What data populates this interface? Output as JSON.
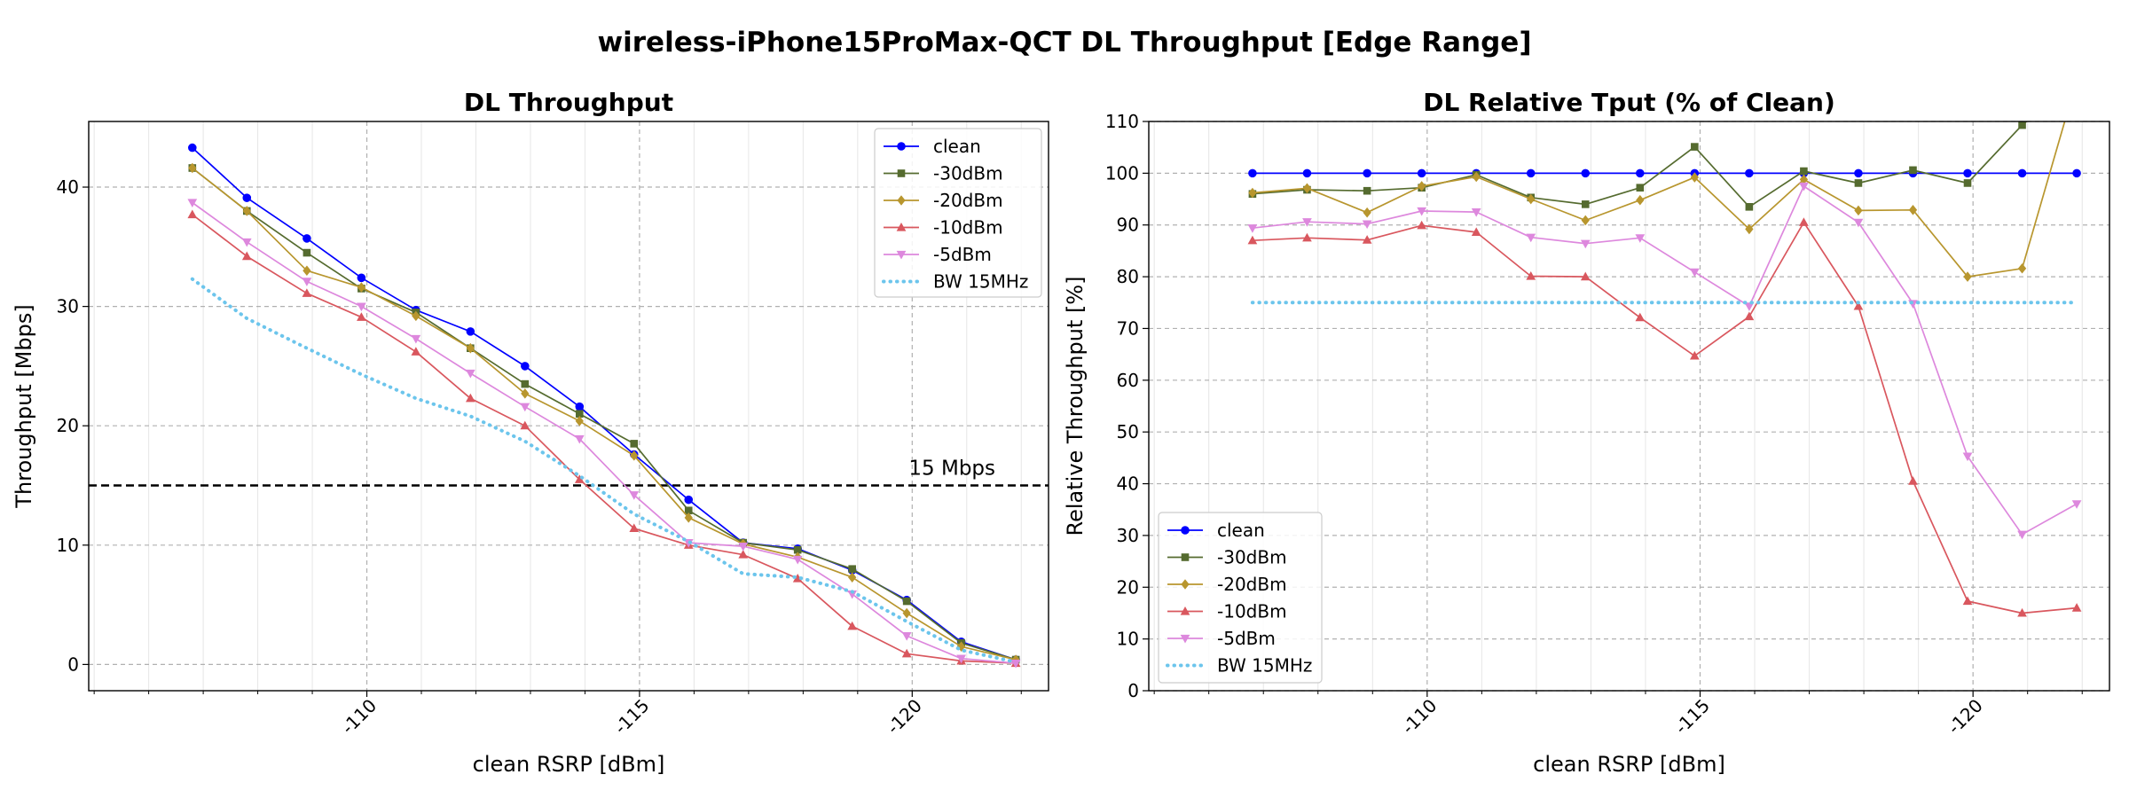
{
  "figure": {
    "suptitle": "wireless-iPhone15ProMax-QCT DL Throughput [Edge Range]"
  },
  "chart_data": [
    {
      "type": "line",
      "title": "DL Throughput",
      "xlabel": "clean RSRP [dBm]",
      "ylabel": "Throughput [Mbps]",
      "x_inverted": true,
      "xlim": [
        -104.9,
        -122.5
      ],
      "ylim": [
        -2.2,
        45.5
      ],
      "x_ticks": [
        -110,
        -115,
        -120
      ],
      "x_tick_labels": [
        "-110",
        "-115",
        "-120"
      ],
      "y_ticks": [
        0,
        10,
        20,
        30,
        40
      ],
      "y_tick_labels": [
        "0",
        "10",
        "20",
        "30",
        "40"
      ],
      "grid": true,
      "legend_position": "top-right",
      "reference_line": {
        "y": 15,
        "label": "15 Mbps",
        "style": "dashed",
        "color": "#000000"
      },
      "x": [
        -106.8,
        -107.8,
        -108.9,
        -109.9,
        -110.9,
        -111.9,
        -112.9,
        -113.9,
        -114.9,
        -115.9,
        -116.9,
        -117.9,
        -118.9,
        -119.9,
        -120.9,
        -121.9
      ],
      "series": [
        {
          "name": "clean",
          "color": "#0000ff",
          "marker": "circle",
          "style": "solid",
          "values": [
            43.3,
            39.1,
            35.7,
            32.4,
            29.7,
            27.9,
            25.0,
            21.6,
            17.6,
            13.8,
            10.2,
            9.7,
            7.9,
            5.4,
            1.9,
            0.4
          ]
        },
        {
          "name": "-30dBm",
          "color": "#556b2f",
          "marker": "square",
          "style": "solid",
          "values": [
            41.6,
            38.0,
            34.5,
            31.5,
            29.5,
            26.5,
            23.5,
            21.0,
            18.5,
            12.9,
            10.2,
            9.6,
            8.0,
            5.3,
            1.8,
            0.4
          ]
        },
        {
          "name": "-20dBm",
          "color": "#b8962e",
          "marker": "diamond",
          "style": "solid",
          "values": [
            41.6,
            38.0,
            33.0,
            31.6,
            29.2,
            26.5,
            22.7,
            20.4,
            17.5,
            12.3,
            10.1,
            9.0,
            7.3,
            4.3,
            1.5,
            0.4
          ]
        },
        {
          "name": "-10dBm",
          "color": "#d9575e",
          "marker": "triangle-up",
          "style": "solid",
          "values": [
            37.7,
            34.2,
            31.1,
            29.1,
            26.2,
            22.3,
            20.0,
            15.5,
            11.4,
            10.0,
            9.2,
            7.2,
            3.2,
            0.9,
            0.3,
            0.1
          ]
        },
        {
          "name": "-5dBm",
          "color": "#dd88dd",
          "marker": "triangle-down",
          "style": "solid",
          "values": [
            38.7,
            35.4,
            32.1,
            30.0,
            27.3,
            24.4,
            21.6,
            18.9,
            14.2,
            10.2,
            9.9,
            8.8,
            5.9,
            2.4,
            0.5,
            0.1
          ]
        },
        {
          "name": "BW 15MHz",
          "color": "#6cc5ec",
          "marker": "none",
          "style": "dotted",
          "values": [
            32.3,
            29.0,
            26.5,
            24.3,
            22.3,
            20.8,
            18.7,
            15.8,
            12.6,
            10.3,
            7.6,
            7.3,
            6.1,
            3.6,
            1.2,
            0.2
          ]
        }
      ]
    },
    {
      "type": "line",
      "title": "DL Relative Tput (% of Clean)",
      "xlabel": "clean RSRP [dBm]",
      "ylabel": "Relative Throughput [%]",
      "x_inverted": true,
      "xlim": [
        -104.9,
        -122.5
      ],
      "ylim": [
        0,
        110
      ],
      "x_ticks": [
        -110,
        -115,
        -120
      ],
      "x_tick_labels": [
        "-110",
        "-115",
        "-120"
      ],
      "y_ticks": [
        0,
        10,
        20,
        30,
        40,
        50,
        60,
        70,
        80,
        90,
        100,
        110
      ],
      "y_tick_labels": [
        "0",
        "10",
        "20",
        "30",
        "40",
        "50",
        "60",
        "70",
        "80",
        "90",
        "100",
        "110"
      ],
      "grid": true,
      "legend_position": "lower-left",
      "x": [
        -106.8,
        -107.8,
        -108.9,
        -109.9,
        -110.9,
        -111.9,
        -112.9,
        -113.9,
        -114.9,
        -115.9,
        -116.9,
        -117.9,
        -118.9,
        -119.9,
        -120.9,
        -121.9
      ],
      "series": [
        {
          "name": "clean",
          "color": "#0000ff",
          "marker": "circle",
          "style": "solid",
          "values": [
            100,
            100,
            100,
            100,
            100,
            100,
            100,
            100,
            100,
            100,
            100,
            100,
            100,
            100,
            100,
            100
          ]
        },
        {
          "name": "-30dBm",
          "color": "#556b2f",
          "marker": "square",
          "style": "solid",
          "values": [
            96,
            96.8,
            96.6,
            97.2,
            99.7,
            95.3,
            94,
            97.2,
            105.1,
            93.5,
            100.4,
            98.1,
            100.6,
            98.1,
            109.3,
            118
          ]
        },
        {
          "name": "-20dBm",
          "color": "#b8962e",
          "marker": "diamond",
          "style": "solid",
          "values": [
            96.2,
            97.1,
            92.4,
            97.5,
            99.3,
            95,
            90.9,
            94.8,
            99.2,
            89.2,
            98.8,
            92.8,
            92.9,
            80,
            81.6,
            118
          ]
        },
        {
          "name": "-10dBm",
          "color": "#d9575e",
          "marker": "triangle-up",
          "style": "solid",
          "values": [
            87,
            87.5,
            87.1,
            89.9,
            88.6,
            80.1,
            80,
            72.1,
            64.7,
            72.3,
            90.5,
            74.3,
            40.5,
            17.3,
            15,
            16
          ]
        },
        {
          "name": "-5dBm",
          "color": "#dd88dd",
          "marker": "triangle-down",
          "style": "solid",
          "values": [
            89.4,
            90.6,
            90.2,
            92.7,
            92.5,
            87.6,
            86.4,
            87.5,
            80.9,
            74.3,
            97.5,
            90.5,
            74.8,
            45.3,
            30.2,
            36.1
          ]
        },
        {
          "name": "BW 15MHz",
          "color": "#6cc5ec",
          "marker": "none",
          "style": "dotted",
          "values": [
            75,
            75,
            75,
            75,
            75,
            75,
            75,
            75,
            75,
            75,
            75,
            75,
            75,
            75,
            75,
            75
          ]
        }
      ]
    }
  ]
}
